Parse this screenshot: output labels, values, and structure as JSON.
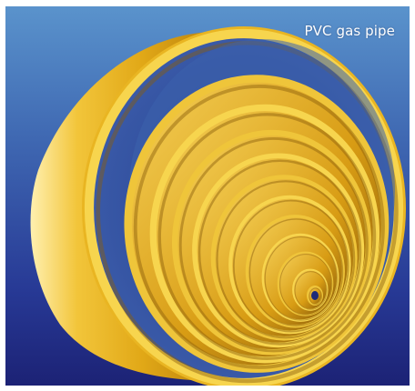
{
  "caption": "PVC gas pipe",
  "colors": {
    "sky_top": "#4f88c7",
    "sky_bottom": "#20277c",
    "pipe_yellow": "#e6b11d",
    "pipe_highlight": "#fff3b0",
    "pipe_shadow": "#8a5d0a"
  },
  "subject": {
    "type": "pipe-icon",
    "ring_count": 12
  }
}
